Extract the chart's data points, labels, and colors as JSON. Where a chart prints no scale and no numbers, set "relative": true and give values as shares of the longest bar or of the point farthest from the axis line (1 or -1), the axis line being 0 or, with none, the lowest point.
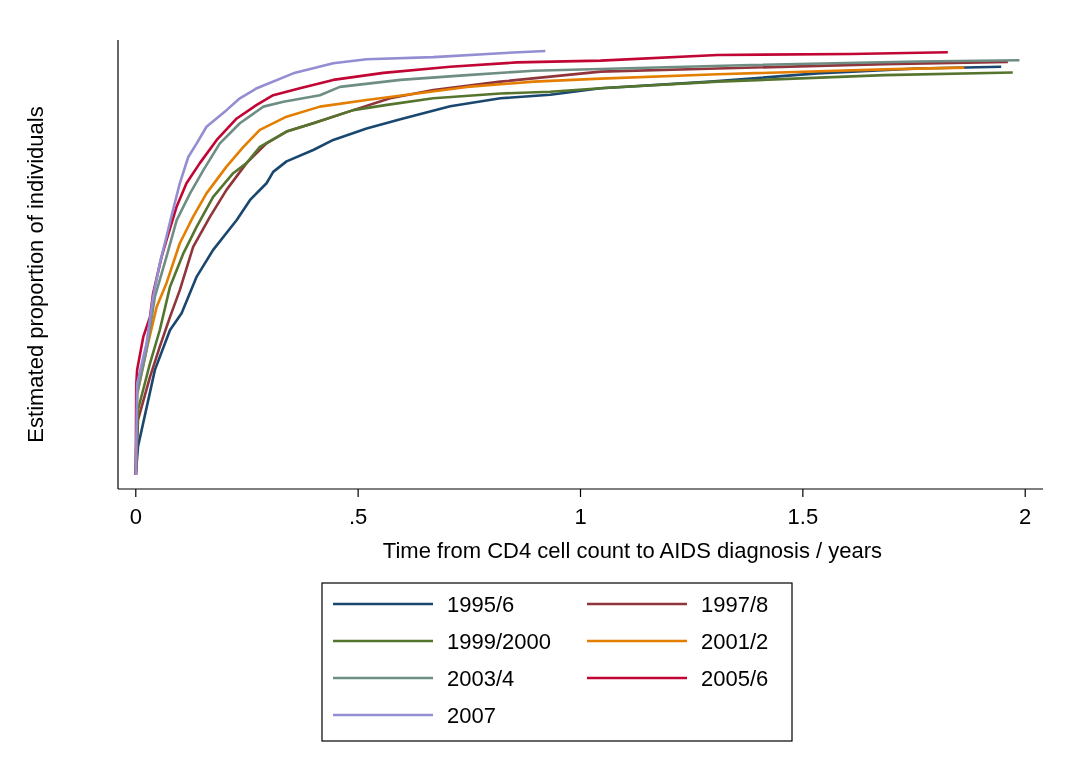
{
  "chart_data": {
    "type": "line",
    "ylabel": "Estimated proportion of individuals",
    "xlabel": "Time from CD4 cell count to AIDS diagnosis / years",
    "relative": true,
    "xlim": [
      -0.04,
      2.04
    ],
    "xticks": [
      0,
      {
        "value": 0.5,
        "label": ".5"
      },
      1,
      1.5,
      2
    ],
    "grid": false,
    "legend": "bottom",
    "marker": "none",
    "line_style": "solid",
    "tick_labels": "x",
    "series": [
      {
        "name": "1995/6",
        "color": "#1a476f",
        "x": [
          0,
          0.005,
          0.043,
          0.077,
          0.103,
          0.137,
          0.174,
          0.227,
          0.257,
          0.294,
          0.309,
          0.339,
          0.399,
          0.444,
          0.519,
          0.595,
          0.707,
          0.82,
          0.932,
          1.045,
          1.293,
          1.533,
          1.758,
          1.946
        ],
        "values": [
          0.032,
          0.097,
          0.272,
          0.363,
          0.401,
          0.485,
          0.546,
          0.614,
          0.66,
          0.698,
          0.724,
          0.748,
          0.774,
          0.797,
          0.823,
          0.844,
          0.874,
          0.892,
          0.9,
          0.915,
          0.93,
          0.949,
          0.96,
          0.964
        ]
      },
      {
        "name": "1997/8",
        "color": "#90353b",
        "x": [
          0,
          0.005,
          0.032,
          0.054,
          0.077,
          0.099,
          0.129,
          0.167,
          0.204,
          0.249,
          0.294,
          0.339,
          0.399,
          0.489,
          0.572,
          0.669,
          0.82,
          1.045,
          1.308,
          1.683,
          1.961
        ],
        "values": [
          0.032,
          0.158,
          0.256,
          0.325,
          0.393,
          0.454,
          0.553,
          0.622,
          0.683,
          0.744,
          0.789,
          0.816,
          0.835,
          0.865,
          0.892,
          0.911,
          0.93,
          0.953,
          0.96,
          0.97,
          0.975
        ]
      },
      {
        "name": "1999/2000",
        "color": "#55752f",
        "x": [
          0,
          0.005,
          0.032,
          0.054,
          0.077,
          0.107,
          0.137,
          0.174,
          0.219,
          0.249,
          0.279,
          0.339,
          0.399,
          0.489,
          0.565,
          0.669,
          0.82,
          0.932,
          1.045,
          1.308,
          1.683,
          1.972
        ],
        "values": [
          0.032,
          0.181,
          0.287,
          0.363,
          0.462,
          0.538,
          0.599,
          0.667,
          0.721,
          0.744,
          0.781,
          0.816,
          0.835,
          0.865,
          0.877,
          0.892,
          0.903,
          0.907,
          0.915,
          0.93,
          0.945,
          0.951
        ]
      },
      {
        "name": "2001/2",
        "color": "#e37e00",
        "x": [
          0,
          0.003,
          0.024,
          0.047,
          0.069,
          0.099,
          0.129,
          0.159,
          0.204,
          0.242,
          0.279,
          0.339,
          0.414,
          0.519,
          0.632,
          0.745,
          0.895,
          1.045,
          1.308,
          1.683,
          1.863
        ],
        "values": [
          0.032,
          0.215,
          0.317,
          0.416,
          0.47,
          0.561,
          0.622,
          0.675,
          0.736,
          0.781,
          0.82,
          0.85,
          0.873,
          0.888,
          0.903,
          0.918,
          0.93,
          0.937,
          0.947,
          0.958,
          0.962
        ]
      },
      {
        "name": "2003/4",
        "color": "#6e8e84",
        "x": [
          0,
          0.003,
          0.024,
          0.043,
          0.069,
          0.092,
          0.122,
          0.152,
          0.189,
          0.234,
          0.287,
          0.332,
          0.414,
          0.459,
          0.595,
          0.745,
          0.895,
          1.383,
          1.758,
          1.987
        ],
        "values": [
          0.032,
          0.218,
          0.317,
          0.439,
          0.53,
          0.614,
          0.675,
          0.728,
          0.789,
          0.835,
          0.873,
          0.884,
          0.899,
          0.918,
          0.934,
          0.945,
          0.955,
          0.968,
          0.976,
          0.979
        ]
      },
      {
        "name": "2005/6",
        "color": "#c10534",
        "x": [
          0,
          0.001,
          0.003,
          0.017,
          0.032,
          0.039,
          0.058,
          0.069,
          0.092,
          0.114,
          0.144,
          0.182,
          0.227,
          0.272,
          0.309,
          0.369,
          0.444,
          0.557,
          0.707,
          0.857,
          1.045,
          1.308,
          1.608,
          1.826
        ],
        "values": [
          0.032,
          0.237,
          0.272,
          0.348,
          0.393,
          0.447,
          0.53,
          0.568,
          0.645,
          0.698,
          0.744,
          0.797,
          0.846,
          0.877,
          0.899,
          0.915,
          0.934,
          0.95,
          0.964,
          0.974,
          0.978,
          0.991,
          0.993,
          0.997
        ]
      },
      {
        "name": "2007",
        "color": "#938dd2",
        "x": [
          0,
          0.003,
          0.024,
          0.039,
          0.054,
          0.069,
          0.08,
          0.099,
          0.118,
          0.137,
          0.159,
          0.204,
          0.234,
          0.272,
          0.354,
          0.444,
          0.519,
          0.669,
          0.82,
          0.921
        ],
        "values": [
          0.032,
          0.24,
          0.332,
          0.439,
          0.515,
          0.576,
          0.622,
          0.698,
          0.758,
          0.789,
          0.827,
          0.865,
          0.892,
          0.915,
          0.949,
          0.972,
          0.981,
          0.986,
          0.995,
          1
        ]
      }
    ]
  }
}
